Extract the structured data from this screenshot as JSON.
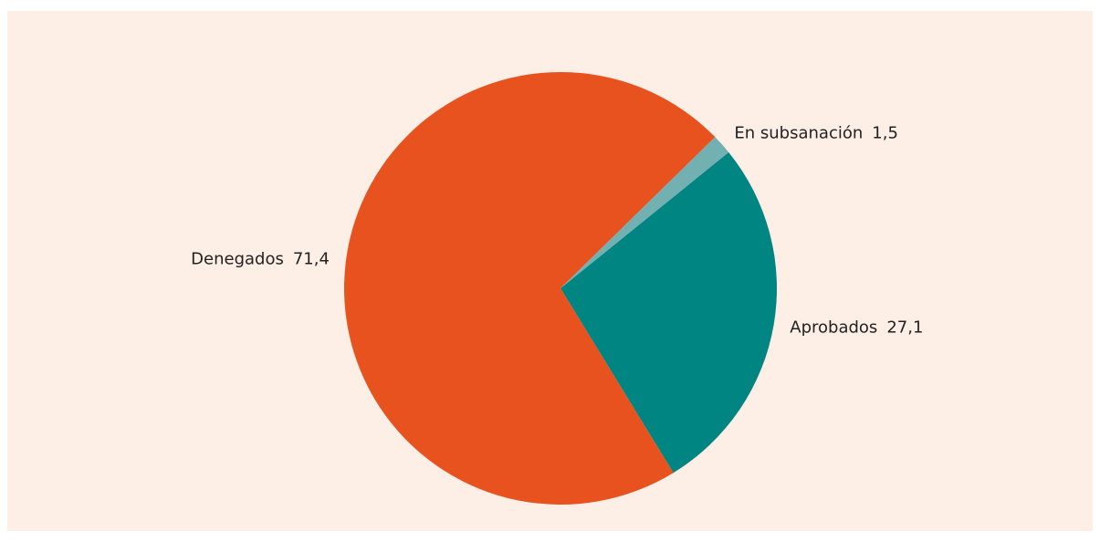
{
  "chart_data": {
    "type": "pie",
    "categories": [
      "Aprobados",
      "Denegados",
      "En subsanación"
    ],
    "values": [
      27.1,
      71.4,
      1.5
    ],
    "value_labels": [
      "27,1",
      "71,4",
      "1,5"
    ],
    "colors": [
      "#008583",
      "#e8521e",
      "#72b0b1"
    ]
  }
}
